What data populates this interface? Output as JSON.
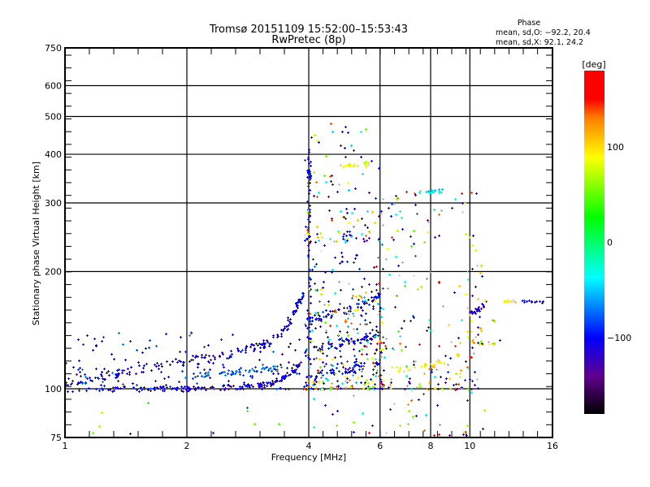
{
  "chart_data": {
    "type": "scatter",
    "title": "Tromsø 20151109 15:52:00–15:53:43",
    "subtitle": "RwPretec (8p)",
    "xlabel": "Frequency [MHz]",
    "ylabel": "Stationary phase Virtual Height [km]",
    "xscale": "log",
    "yscale": "log",
    "xlim": [
      1,
      16
    ],
    "ylim": [
      75,
      750
    ],
    "xticks": [
      "1",
      "2",
      "4",
      "6",
      "8",
      "10",
      "16"
    ],
    "xtick_values": [
      1,
      2,
      4,
      6,
      8,
      10,
      16
    ],
    "yticks": [
      "75",
      "100",
      "200",
      "300",
      "400",
      "500",
      "600",
      "750"
    ],
    "ytick_values": [
      75,
      100,
      200,
      300,
      400,
      500,
      600,
      750
    ],
    "xgrid": [
      2,
      4,
      6,
      8,
      10
    ],
    "ygrid": [
      100,
      200,
      300,
      400,
      500,
      600
    ],
    "stats": {
      "heading": "Phase",
      "line_o": "mean, sd,O: −92.2, 20.4",
      "line_x": "mean, sd,X:  92.1, 24.2"
    },
    "colorbar": {
      "label": "[deg]",
      "range": [
        -180,
        180
      ],
      "ticks": [
        "100",
        "0",
        "−100"
      ],
      "tick_values": [
        100,
        0,
        -100
      ],
      "stops": [
        {
          "v": 180,
          "c": "#ff0000"
        },
        {
          "v": 150,
          "c": "#ff0000"
        },
        {
          "v": 130,
          "c": "#ff8000"
        },
        {
          "v": 89,
          "c": "#ffff00"
        },
        {
          "v": 26,
          "c": "#00ff00"
        },
        {
          "v": -37,
          "c": "#00ffff"
        },
        {
          "v": -100,
          "c": "#0000ff"
        },
        {
          "v": -140,
          "c": "#600090"
        },
        {
          "v": -180,
          "c": "#000000"
        }
      ]
    },
    "traces": [
      {
        "phase": -110,
        "n": 160,
        "jit": 0.015,
        "path": [
          [
            1.0,
            99
          ],
          [
            1.5,
            100
          ],
          [
            2.0,
            100
          ],
          [
            2.5,
            101
          ],
          [
            3.0,
            102
          ],
          [
            3.3,
            104
          ],
          [
            3.6,
            110
          ],
          [
            3.8,
            116
          ]
        ]
      },
      {
        "phase": -105,
        "n": 190,
        "jit": 0.025,
        "path": [
          [
            1.0,
            104
          ],
          [
            1.2,
            108
          ],
          [
            1.4,
            110
          ],
          [
            1.7,
            115
          ],
          [
            2.0,
            118
          ],
          [
            2.4,
            121
          ],
          [
            2.8,
            126
          ],
          [
            3.2,
            132
          ],
          [
            3.5,
            142
          ],
          [
            3.7,
            160
          ],
          [
            3.9,
            178
          ]
        ]
      },
      {
        "phase": -75,
        "n": 60,
        "jit": 0.015,
        "path": [
          [
            2.0,
            108
          ],
          [
            2.5,
            110
          ],
          [
            3.0,
            112
          ],
          [
            3.4,
            113
          ]
        ]
      },
      {
        "phase": -100,
        "n": 60,
        "jit": 0.02,
        "path": [
          [
            4.0,
            108
          ],
          [
            4.5,
            110
          ],
          [
            5.0,
            112
          ],
          [
            5.5,
            115
          ],
          [
            6.0,
            118
          ]
        ]
      },
      {
        "phase": -105,
        "n": 60,
        "jit": 0.02,
        "path": [
          [
            4.0,
            125
          ],
          [
            4.5,
            130
          ],
          [
            5.0,
            133
          ],
          [
            5.5,
            135
          ],
          [
            6.0,
            140
          ]
        ]
      },
      {
        "phase": -100,
        "n": 60,
        "jit": 0.02,
        "path": [
          [
            4.0,
            150
          ],
          [
            4.5,
            155
          ],
          [
            5.0,
            160
          ],
          [
            5.5,
            166
          ],
          [
            6.0,
            175
          ]
        ]
      },
      {
        "phase": -100,
        "n": 70,
        "jit": 0.05,
        "path": [
          [
            4.0,
            120
          ],
          [
            4.0,
            400
          ]
        ]
      },
      {
        "phase": -40,
        "n": 18,
        "jit": 0.01,
        "path": [
          [
            7.5,
            320
          ],
          [
            8.6,
            322
          ]
        ]
      },
      {
        "phase": 80,
        "n": 18,
        "jit": 0.01,
        "path": [
          [
            4.8,
            372
          ],
          [
            5.6,
            380
          ]
        ]
      },
      {
        "phase": 90,
        "n": 30,
        "jit": 0.015,
        "path": [
          [
            6.6,
            112
          ],
          [
            7.5,
            114
          ],
          [
            8.5,
            118
          ],
          [
            9.5,
            122
          ]
        ]
      },
      {
        "phase": -115,
        "n": 25,
        "jit": 0.015,
        "path": [
          [
            9.8,
            155
          ],
          [
            10.5,
            160
          ],
          [
            11.0,
            166
          ]
        ]
      },
      {
        "phase": 95,
        "n": 14,
        "jit": 0.006,
        "path": [
          [
            12.0,
            169
          ],
          [
            13.5,
            168
          ]
        ]
      },
      {
        "phase": -100,
        "n": 12,
        "jit": 0.006,
        "path": [
          [
            13.5,
            168
          ],
          [
            15.5,
            167
          ]
        ]
      }
    ],
    "clouds": [
      {
        "f": [
          1.0,
          3.9
        ],
        "h": [
          100,
          140
        ],
        "n": 160,
        "phases": [
          -110,
          -100,
          -120,
          -90,
          -80
        ]
      },
      {
        "f": [
          1.0,
          3.6
        ],
        "h": [
          76,
          125
        ],
        "n": 12,
        "phases": [
          40,
          60,
          -70,
          -140,
          20
        ]
      },
      {
        "f": [
          3.9,
          6.2
        ],
        "h": [
          100,
          240
        ],
        "n": 330,
        "phases": [
          -110,
          -100,
          -120,
          -60,
          60,
          90,
          120,
          150,
          -30,
          -100,
          -90
        ]
      },
      {
        "f": [
          3.9,
          6.0
        ],
        "h": [
          240,
          480
        ],
        "n": 110,
        "phases": [
          -110,
          -100,
          -40,
          60,
          100,
          130,
          -130
        ]
      },
      {
        "f": [
          6.0,
          10.5
        ],
        "h": [
          100,
          330
        ],
        "n": 190,
        "phases": [
          -110,
          -100,
          80,
          100,
          120,
          150,
          -30,
          50,
          -130
        ]
      },
      {
        "f": [
          4.0,
          11.0
        ],
        "h": [
          76,
          100
        ],
        "n": 40,
        "phases": [
          -110,
          120,
          60,
          -40,
          150,
          -130
        ]
      },
      {
        "f": [
          10.0,
          12.0
        ],
        "h": [
          130,
          210
        ],
        "n": 30,
        "phases": [
          100,
          120,
          -110,
          60
        ]
      }
    ]
  }
}
